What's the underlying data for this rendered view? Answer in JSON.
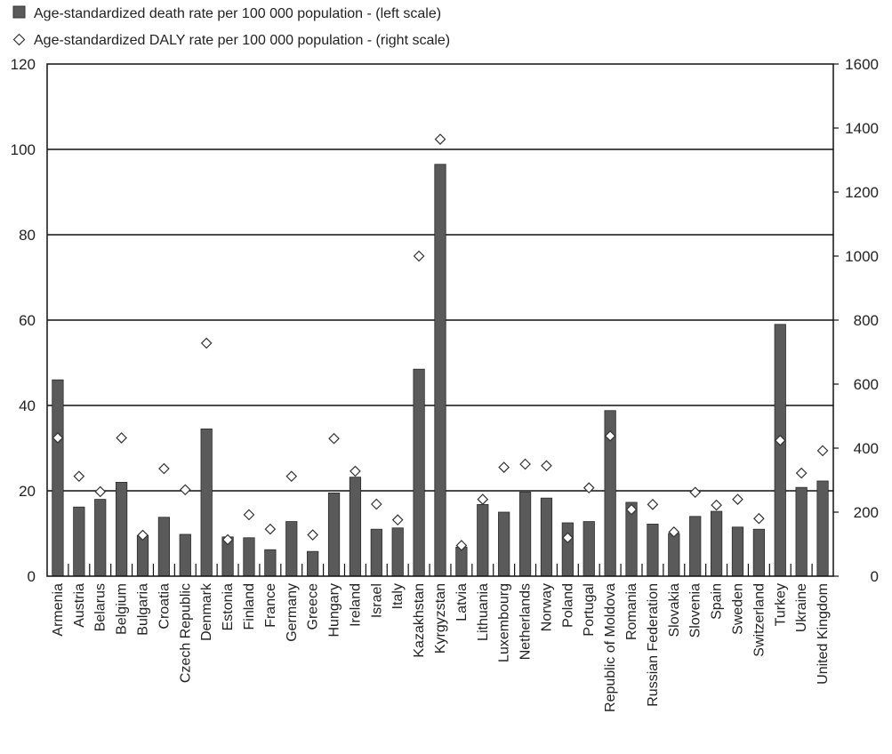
{
  "chart_data": {
    "type": "bar",
    "title": "",
    "xlabel": "",
    "ylabel": "",
    "ylabel_right": "",
    "ylim": [
      0,
      120
    ],
    "ylim_right": [
      0,
      1600
    ],
    "yticks": [
      0,
      20,
      40,
      60,
      80,
      100,
      120
    ],
    "yticks_right": [
      0,
      200,
      400,
      600,
      800,
      1000,
      1200,
      1400,
      1600
    ],
    "grid": true,
    "legend_position": "top-left",
    "categories": [
      "Armenia",
      "Austria",
      "Belarus",
      "Belgium",
      "Bulgaria",
      "Croatia",
      "Czech Republic",
      "Denmark",
      "Estonia",
      "Finland",
      "France",
      "Germany",
      "Greece",
      "Hungary",
      "Ireland",
      "Israel",
      "Italy",
      "Kazakhstan",
      "Kyrgyzstan",
      "Latvia",
      "Lithuania",
      "Luxembourg",
      "Netherlands",
      "Norway",
      "Poland",
      "Portugal",
      "Republic of Moldova",
      "Romania",
      "Russian Federation",
      "Slovakia",
      "Slovenia",
      "Spain",
      "Sweden",
      "Switzerland",
      "Turkey",
      "Ukraine",
      "United Kingdom"
    ],
    "series": [
      {
        "name": "Age-standardized death rate per 100 000 population - (left scale)",
        "type": "bar",
        "axis": "left",
        "color": "#5a5a5a",
        "values": [
          46,
          16.2,
          18,
          22,
          9.5,
          13.8,
          9.8,
          34.5,
          9.2,
          9,
          6.2,
          12.8,
          5.8,
          19.5,
          23.2,
          11,
          11.3,
          48.5,
          96.5,
          6.8,
          16.8,
          15,
          19.7,
          18.3,
          12.5,
          12.8,
          38.8,
          17.3,
          12.2,
          10,
          14,
          15.2,
          11.5,
          11,
          59,
          20.8,
          22.3
        ]
      },
      {
        "name": "Age-standardized DALY rate per 100 000 population - (right scale)",
        "type": "scatter",
        "axis": "right",
        "marker": "diamond",
        "values": [
          432,
          312,
          264,
          432,
          128,
          336,
          270,
          728,
          114,
          192,
          147,
          312,
          129,
          430,
          328,
          225,
          176,
          1000,
          1365,
          96,
          240,
          340,
          350,
          345,
          120,
          276,
          438,
          208,
          224,
          138,
          262,
          222,
          240,
          180,
          424,
          322,
          392
        ]
      }
    ]
  }
}
